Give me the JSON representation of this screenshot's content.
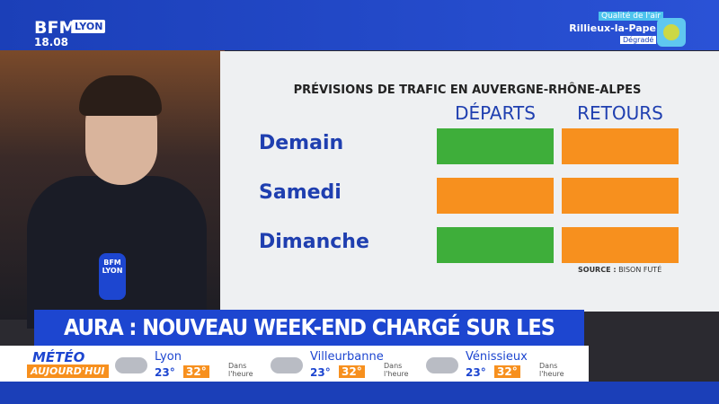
{
  "header": {
    "logo": "BFM",
    "region": "LYON",
    "time": "18.08",
    "air_quality": {
      "label": "Qualité de l'air",
      "city": "Rillieux-la-Pape",
      "status": "Dégradé"
    }
  },
  "mic": {
    "logo": "BFM",
    "region": "LYON"
  },
  "panel": {
    "title": "PRÉVISIONS DE TRAFIC EN AUVERGNE-RHÔNE-ALPES",
    "columns": [
      "DÉPARTS",
      "RETOURS"
    ],
    "rows": [
      {
        "day": "Demain",
        "cells": [
          "#3eae3a",
          "#f7901e"
        ]
      },
      {
        "day": "Samedi",
        "cells": [
          "#f7901e",
          "#f7901e"
        ]
      },
      {
        "day": "Dimanche",
        "cells": [
          "#3eae3a",
          "#f7901e"
        ]
      }
    ],
    "source_label": "SOURCE :",
    "source": "BISON FUTÉ"
  },
  "headline": "AURA : NOUVEAU WEEK-END CHARGÉ SUR LES ROUTES",
  "weather": {
    "label": "MÉTÉO",
    "sublabel": "AUJOURD'HUI",
    "cities": [
      {
        "name": "Lyon",
        "min": "23°",
        "max": "32°",
        "forecast": "Dans l'heure"
      },
      {
        "name": "Villeurbanne",
        "min": "23°",
        "max": "32°",
        "forecast": "Dans l'heure"
      },
      {
        "name": "Vénissieux",
        "min": "23°",
        "max": "32°",
        "forecast": "Dans l'heure"
      }
    ]
  }
}
